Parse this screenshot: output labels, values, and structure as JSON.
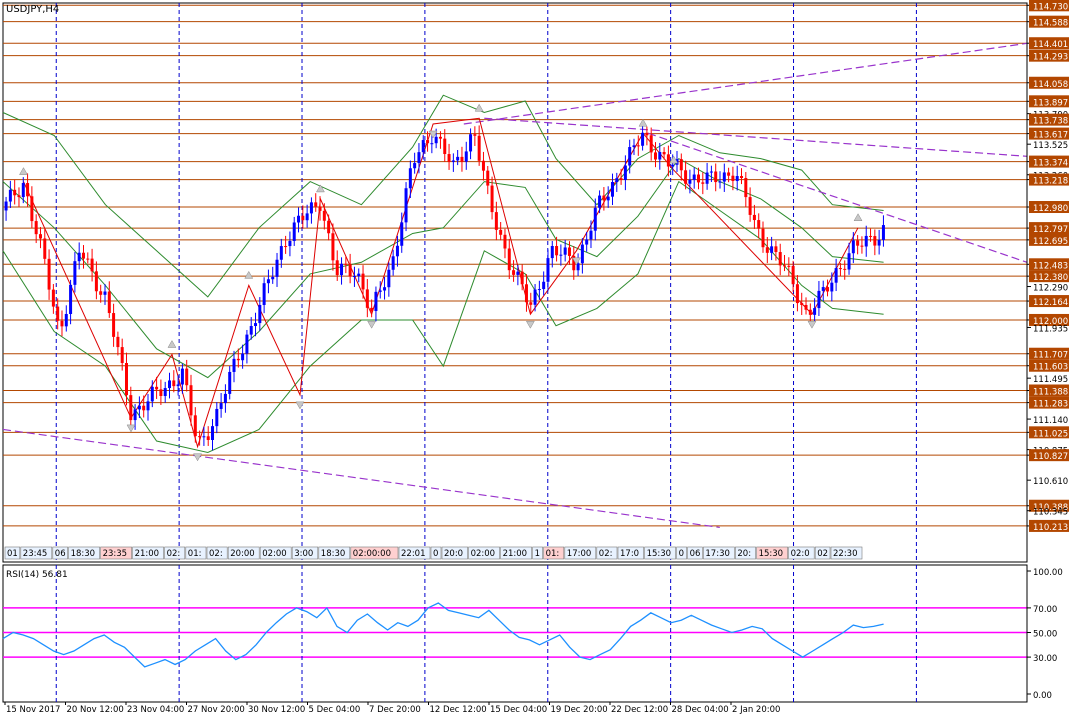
{
  "window": {
    "main_label": "USDJPY,H4",
    "rsi_label": "RSI(14) 56.81"
  },
  "colors": {
    "background": "#ffffff",
    "frame": "#000000",
    "grid_vertical": "#0000cc",
    "level_line": "#b34700",
    "candle_bull": "#0000ff",
    "candle_bear": "#ff0000",
    "bands": "#2e8b2e",
    "trendline": "#9933cc",
    "zigzag": "#dd0000",
    "rsi_line": "#1e90ff",
    "rsi_level": "#ff00ff"
  },
  "chart_data": [
    {
      "type": "candlestick",
      "symbol": "USDJPY",
      "timeframe": "H4",
      "title": "USDJPY,H4",
      "ylim": [
        109.9,
        114.75
      ],
      "y_ticks": [
        "114.730",
        "114.588",
        "114.401",
        "114.293",
        "114.058",
        "113.897",
        "113.790",
        "113.738",
        "113.617",
        "113.525",
        "113.374",
        "113.260",
        "113.218",
        "112.980",
        "112.797",
        "112.695",
        "112.483",
        "112.380",
        "112.290",
        "112.164",
        "112.000",
        "111.935",
        "111.707",
        "111.603",
        "111.495",
        "111.388",
        "111.283",
        "111.140",
        "111.025",
        "110.875",
        "110.827",
        "110.610",
        "110.388",
        "110.345",
        "110.213"
      ],
      "highlighted_levels": [
        "114.730",
        "114.588",
        "114.401",
        "114.293",
        "114.058",
        "113.897",
        "113.738",
        "113.617",
        "113.374",
        "113.218",
        "112.980",
        "112.797",
        "112.695",
        "112.483",
        "112.380",
        "112.164",
        "112.000",
        "111.707",
        "111.603",
        "111.388",
        "111.283",
        "111.025",
        "110.827",
        "110.388",
        "110.213"
      ],
      "horizontal_levels": [
        114.73,
        114.588,
        114.401,
        114.293,
        114.058,
        113.897,
        113.738,
        113.617,
        113.374,
        113.218,
        112.98,
        112.797,
        112.695,
        112.483,
        112.38,
        112.164,
        112.0,
        111.707,
        111.603,
        111.388,
        111.283,
        111.025,
        110.827,
        110.388,
        110.213
      ],
      "x_labels": [
        "15 Nov 2017",
        "20 Nov 12:00",
        "23 Nov 04:00",
        "27 Nov 20:00",
        "30 Nov 12:00",
        "5 Dec 04:00",
        "7 Dec 20:00",
        "12 Dec 12:00",
        "15 Dec 04:00",
        "19 Dec 20:00",
        "22 Dec 12:00",
        "28 Dec 04:00",
        "2 Jan 20:00"
      ],
      "time_strip": [
        {
          "t": "01",
          "hl": false
        },
        {
          "t": "23:45",
          "hl": false
        },
        {
          "t": "06",
          "hl": false
        },
        {
          "t": "18:30",
          "hl": false
        },
        {
          "t": "23:35",
          "hl": true
        },
        {
          "t": "21:00",
          "hl": false
        },
        {
          "t": "02:",
          "hl": false
        },
        {
          "t": "01:",
          "hl": false
        },
        {
          "t": "02:",
          "hl": false
        },
        {
          "t": "20:00",
          "hl": false
        },
        {
          "t": "02:00",
          "hl": false
        },
        {
          "t": "3:00",
          "hl": false
        },
        {
          "t": "18:30",
          "hl": false
        },
        {
          "t": "02:00:00",
          "hl": true
        },
        {
          "t": "22:01",
          "hl": false
        },
        {
          "t": "0",
          "hl": false
        },
        {
          "t": "20:0",
          "hl": false
        },
        {
          "t": "02:00",
          "hl": false
        },
        {
          "t": "21:00",
          "hl": false
        },
        {
          "t": "1",
          "hl": false
        },
        {
          "t": "01:",
          "hl": true
        },
        {
          "t": "17:00",
          "hl": false
        },
        {
          "t": "02:",
          "hl": false
        },
        {
          "t": "17:0",
          "hl": false
        },
        {
          "t": "15:30",
          "hl": false
        },
        {
          "t": "0",
          "hl": false
        },
        {
          "t": "06",
          "hl": false
        },
        {
          "t": "17:30",
          "hl": false
        },
        {
          "t": "20:",
          "hl": false
        },
        {
          "t": "15:30",
          "hl": true
        },
        {
          "t": "02:0",
          "hl": false
        },
        {
          "t": "02",
          "hl": false
        },
        {
          "t": "22:30",
          "hl": false
        },
        {
          "t": "02:3",
          "hl": false
        },
        {
          "t": "22:30",
          "hl": false
        }
      ],
      "close_path": [
        {
          "x": 0,
          "y": 112.95
        },
        {
          "x": 0.02,
          "y": 113.2
        },
        {
          "x": 0.04,
          "y": 112.5
        },
        {
          "x": 0.055,
          "y": 111.9
        },
        {
          "x": 0.075,
          "y": 112.6
        },
        {
          "x": 0.1,
          "y": 112.2
        },
        {
          "x": 0.125,
          "y": 111.2
        },
        {
          "x": 0.15,
          "y": 111.35
        },
        {
          "x": 0.175,
          "y": 111.55
        },
        {
          "x": 0.19,
          "y": 110.9
        },
        {
          "x": 0.21,
          "y": 111.2
        },
        {
          "x": 0.23,
          "y": 111.7
        },
        {
          "x": 0.25,
          "y": 112.1
        },
        {
          "x": 0.275,
          "y": 112.7
        },
        {
          "x": 0.295,
          "y": 112.9
        },
        {
          "x": 0.31,
          "y": 113.05
        },
        {
          "x": 0.325,
          "y": 112.4
        },
        {
          "x": 0.345,
          "y": 112.45
        },
        {
          "x": 0.36,
          "y": 112.05
        },
        {
          "x": 0.38,
          "y": 112.5
        },
        {
          "x": 0.4,
          "y": 113.35
        },
        {
          "x": 0.42,
          "y": 113.65
        },
        {
          "x": 0.44,
          "y": 113.3
        },
        {
          "x": 0.46,
          "y": 113.65
        },
        {
          "x": 0.475,
          "y": 113.0
        },
        {
          "x": 0.495,
          "y": 112.5
        },
        {
          "x": 0.515,
          "y": 112.1
        },
        {
          "x": 0.535,
          "y": 112.6
        },
        {
          "x": 0.56,
          "y": 112.5
        },
        {
          "x": 0.58,
          "y": 112.95
        },
        {
          "x": 0.6,
          "y": 113.25
        },
        {
          "x": 0.625,
          "y": 113.6
        },
        {
          "x": 0.65,
          "y": 113.35
        },
        {
          "x": 0.67,
          "y": 113.25
        },
        {
          "x": 0.69,
          "y": 113.2
        },
        {
          "x": 0.715,
          "y": 113.3
        },
        {
          "x": 0.735,
          "y": 112.8
        },
        {
          "x": 0.755,
          "y": 112.55
        },
        {
          "x": 0.77,
          "y": 112.35
        },
        {
          "x": 0.785,
          "y": 112.05
        },
        {
          "x": 0.8,
          "y": 112.2
        },
        {
          "x": 0.815,
          "y": 112.45
        },
        {
          "x": 0.83,
          "y": 112.6
        },
        {
          "x": 0.845,
          "y": 112.7
        },
        {
          "x": 0.86,
          "y": 112.78
        }
      ],
      "bands_upper": [
        {
          "x": 0,
          "y": 113.8
        },
        {
          "x": 0.05,
          "y": 113.6
        },
        {
          "x": 0.1,
          "y": 113.0
        },
        {
          "x": 0.15,
          "y": 112.6
        },
        {
          "x": 0.2,
          "y": 112.2
        },
        {
          "x": 0.25,
          "y": 112.8
        },
        {
          "x": 0.3,
          "y": 113.2
        },
        {
          "x": 0.35,
          "y": 113.0
        },
        {
          "x": 0.4,
          "y": 113.5
        },
        {
          "x": 0.43,
          "y": 113.95
        },
        {
          "x": 0.47,
          "y": 113.8
        },
        {
          "x": 0.51,
          "y": 113.9
        },
        {
          "x": 0.54,
          "y": 113.4
        },
        {
          "x": 0.58,
          "y": 113.0
        },
        {
          "x": 0.62,
          "y": 113.4
        },
        {
          "x": 0.66,
          "y": 113.6
        },
        {
          "x": 0.7,
          "y": 113.45
        },
        {
          "x": 0.74,
          "y": 113.4
        },
        {
          "x": 0.78,
          "y": 113.3
        },
        {
          "x": 0.81,
          "y": 113.0
        },
        {
          "x": 0.86,
          "y": 112.95
        }
      ],
      "bands_lower": [
        {
          "x": 0,
          "y": 112.6
        },
        {
          "x": 0.05,
          "y": 111.9
        },
        {
          "x": 0.1,
          "y": 111.6
        },
        {
          "x": 0.15,
          "y": 110.95
        },
        {
          "x": 0.2,
          "y": 110.85
        },
        {
          "x": 0.25,
          "y": 111.05
        },
        {
          "x": 0.3,
          "y": 111.6
        },
        {
          "x": 0.35,
          "y": 112.0
        },
        {
          "x": 0.4,
          "y": 112.0
        },
        {
          "x": 0.43,
          "y": 111.6
        },
        {
          "x": 0.47,
          "y": 112.6
        },
        {
          "x": 0.51,
          "y": 112.4
        },
        {
          "x": 0.54,
          "y": 111.95
        },
        {
          "x": 0.58,
          "y": 112.1
        },
        {
          "x": 0.62,
          "y": 112.4
        },
        {
          "x": 0.66,
          "y": 113.2
        },
        {
          "x": 0.7,
          "y": 112.95
        },
        {
          "x": 0.74,
          "y": 112.7
        },
        {
          "x": 0.78,
          "y": 112.3
        },
        {
          "x": 0.81,
          "y": 112.1
        },
        {
          "x": 0.86,
          "y": 112.05
        }
      ],
      "bands_middle": [
        {
          "x": 0,
          "y": 113.2
        },
        {
          "x": 0.05,
          "y": 112.8
        },
        {
          "x": 0.1,
          "y": 112.3
        },
        {
          "x": 0.15,
          "y": 111.75
        },
        {
          "x": 0.2,
          "y": 111.5
        },
        {
          "x": 0.25,
          "y": 111.9
        },
        {
          "x": 0.3,
          "y": 112.4
        },
        {
          "x": 0.35,
          "y": 112.5
        },
        {
          "x": 0.4,
          "y": 112.75
        },
        {
          "x": 0.43,
          "y": 112.8
        },
        {
          "x": 0.47,
          "y": 113.2
        },
        {
          "x": 0.51,
          "y": 113.15
        },
        {
          "x": 0.54,
          "y": 112.7
        },
        {
          "x": 0.58,
          "y": 112.55
        },
        {
          "x": 0.62,
          "y": 112.9
        },
        {
          "x": 0.66,
          "y": 113.4
        },
        {
          "x": 0.7,
          "y": 113.2
        },
        {
          "x": 0.74,
          "y": 113.05
        },
        {
          "x": 0.78,
          "y": 112.8
        },
        {
          "x": 0.81,
          "y": 112.55
        },
        {
          "x": 0.86,
          "y": 112.5
        }
      ],
      "zigzag": [
        {
          "x": 0.02,
          "y": 113.2
        },
        {
          "x": 0.125,
          "y": 111.15
        },
        {
          "x": 0.165,
          "y": 111.7
        },
        {
          "x": 0.19,
          "y": 110.9
        },
        {
          "x": 0.24,
          "y": 112.3
        },
        {
          "x": 0.29,
          "y": 111.35
        },
        {
          "x": 0.31,
          "y": 113.05
        },
        {
          "x": 0.36,
          "y": 112.05
        },
        {
          "x": 0.42,
          "y": 113.7
        },
        {
          "x": 0.465,
          "y": 113.75
        },
        {
          "x": 0.515,
          "y": 112.05
        },
        {
          "x": 0.56,
          "y": 112.6
        },
        {
          "x": 0.625,
          "y": 113.62
        },
        {
          "x": 0.655,
          "y": 113.3
        },
        {
          "x": 0.79,
          "y": 112.05
        },
        {
          "x": 0.835,
          "y": 112.8
        }
      ],
      "trendlines": [
        {
          "x1": 0.0,
          "y1": 111.05,
          "x2": 0.7,
          "y2": 110.2
        },
        {
          "x1": 0.45,
          "y1": 113.7,
          "x2": 1.0,
          "y2": 114.4
        },
        {
          "x1": 0.47,
          "y1": 113.75,
          "x2": 1.0,
          "y2": 113.42
        },
        {
          "x1": 0.63,
          "y1": 113.62,
          "x2": 1.0,
          "y2": 112.5
        }
      ],
      "vertical_grid_x": [
        0.052,
        0.172,
        0.292,
        0.412,
        0.532,
        0.652,
        0.772,
        0.892
      ]
    },
    {
      "type": "line",
      "title": "RSI(14) 56.81",
      "ylim": [
        0,
        100
      ],
      "y_ticks": [
        "100.00",
        "70.00",
        "50.00",
        "30.00",
        "0.00"
      ],
      "levels": [
        70,
        50,
        30
      ],
      "values": [
        45,
        50,
        48,
        45,
        40,
        35,
        32,
        35,
        40,
        45,
        48,
        42,
        38,
        30,
        22,
        25,
        28,
        24,
        28,
        35,
        40,
        45,
        35,
        28,
        32,
        40,
        50,
        58,
        65,
        70,
        67,
        62,
        70,
        55,
        50,
        60,
        65,
        58,
        52,
        58,
        55,
        60,
        70,
        74,
        68,
        66,
        64,
        62,
        68,
        60,
        52,
        46,
        44,
        40,
        44,
        48,
        38,
        30,
        28,
        32,
        36,
        45,
        55,
        60,
        66,
        62,
        58,
        60,
        64,
        60,
        56,
        53,
        50,
        52,
        55,
        53,
        45,
        40,
        35,
        30,
        35,
        40,
        45,
        50,
        56,
        54,
        55,
        56.81
      ]
    }
  ]
}
